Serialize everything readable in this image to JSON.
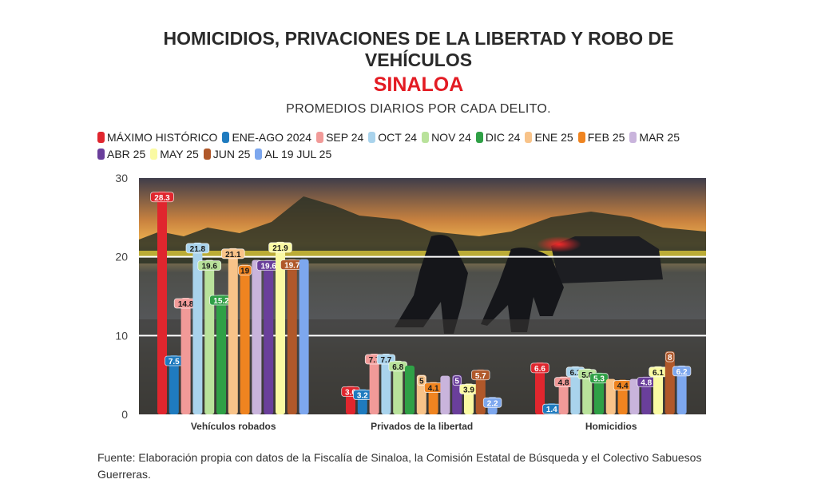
{
  "chart_data": {
    "type": "bar",
    "title_line1": "HOMICIDIOS, PRIVACIONES DE LA LIBERTAD Y ROBO DE",
    "title_line2": "VEHÍCULOS",
    "region": "SINALOA",
    "subtitle": "PROMEDIOS DIARIOS POR CADA DELITO.",
    "categories": [
      "Vehículos robados",
      "Privados de la libertad",
      "Homicidios"
    ],
    "ylim": [
      0,
      30
    ],
    "yticks": [
      "0",
      "10",
      "20",
      "30"
    ],
    "grid": true,
    "legend_position": "top",
    "series": [
      {
        "name": "MÁXIMO HISTÓRICO",
        "color": "#e0262e",
        "values": [
          28.3,
          3.6,
          6.6
        ]
      },
      {
        "name": "ENE-AGO 2024",
        "color": "#1f7bbf",
        "values": [
          7.5,
          3.2,
          1.4
        ]
      },
      {
        "name": "SEP 24",
        "color": "#f19a98",
        "values": [
          14.8,
          7.7,
          4.8
        ]
      },
      {
        "name": "OCT 24",
        "color": "#a9d3ec",
        "values": [
          21.8,
          7.7,
          6.1
        ]
      },
      {
        "name": "NOV 24",
        "color": "#b9e29b",
        "values": [
          19.6,
          6.8,
          5.8
        ]
      },
      {
        "name": "DIC 24",
        "color": "#2fa046",
        "values": [
          15.2,
          6.2,
          5.3
        ]
      },
      {
        "name": "ENE 25",
        "color": "#f8c389",
        "values": [
          21.1,
          5,
          4.5
        ]
      },
      {
        "name": "FEB 25",
        "color": "#ef8420",
        "values": [
          19,
          4.1,
          4.4
        ]
      },
      {
        "name": "MAR 25",
        "color": "#c9b4dc",
        "values": [
          19.6,
          4.9,
          4.5
        ]
      },
      {
        "name": "ABR 25",
        "color": "#6a3f9b",
        "values": [
          19.6,
          5,
          4.8
        ]
      },
      {
        "name": "MAY 25",
        "color": "#fafaa3",
        "values": [
          21.9,
          3.9,
          6.1
        ]
      },
      {
        "name": "JUN 25",
        "color": "#b0582a",
        "values": [
          19.7,
          5.7,
          8
        ]
      },
      {
        "name": "AL 19 JUL 25",
        "color": "#7da7ee",
        "values": [
          19.7,
          2.2,
          6.2
        ]
      }
    ],
    "data_labels": [
      [
        "28.3",
        "7.5",
        "14.8",
        "21.8",
        "19.6",
        "15.2",
        "21.1",
        "19",
        "",
        "19.6",
        "21.9",
        "19.7",
        ""
      ],
      [
        "3.6",
        "3.2",
        "7.7",
        "7.7",
        "6.8",
        "",
        "5",
        "4.1",
        "",
        "5",
        "3.9",
        "5.7",
        "2.2"
      ],
      [
        "6.6",
        "1.4",
        "4.8",
        "6.1",
        "5.8",
        "5.3",
        "",
        "4.4",
        "",
        "4.8",
        "6.1",
        "8",
        "6.2"
      ]
    ]
  },
  "source": "Fuente: Elaboración propia con datos de la Fiscalía de Sinaloa, la Comisión Estatal de Búsqueda y el Colectivo Sabuesos Guerreras."
}
